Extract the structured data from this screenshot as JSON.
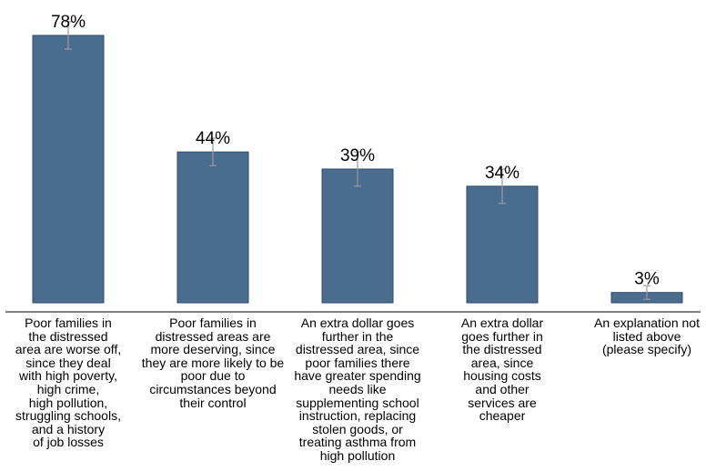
{
  "chart_data": {
    "type": "bar",
    "categories": [
      "Poor families in\nthe distressed\narea are worse off,\nsince they deal\nwith high poverty,\nhigh crime,\nhigh pollution,\nstruggling schools,\nand a history\nof job losses",
      "Poor families in\ndistressed areas are\nmore deserving, since\nthey are more likely to be\npoor due to\ncircumstances beyond\ntheir control",
      "An extra dollar goes\nfurther in the\ndistressed area, since\npoor families there\nhave greater spending\nneeds like\nsupplementing school\ninstruction, replacing\nstolen goods, or\ntreating asthma from\nhigh pollution",
      "An extra dollar\ngoes further in\nthe distressed\narea, since\nhousing costs\nand other\nservices are\ncheaper",
      "An explanation not\nlisted above\n(please specify)"
    ],
    "values": [
      78,
      44,
      39,
      34,
      3
    ],
    "value_labels": [
      "78%",
      "44%",
      "39%",
      "34%",
      "3%"
    ],
    "error_bars": [
      [
        74,
        82
      ],
      [
        40,
        48
      ],
      [
        34,
        44
      ],
      [
        29,
        39
      ],
      [
        1,
        5
      ]
    ],
    "ylim": [
      0,
      80
    ],
    "grid": false,
    "legend": "none",
    "colors": {
      "bar_fill": "#4a6d8f",
      "bar_stroke": "#2c4a6a",
      "error_bar": "#9a9a9a",
      "axis": "#000000"
    }
  }
}
